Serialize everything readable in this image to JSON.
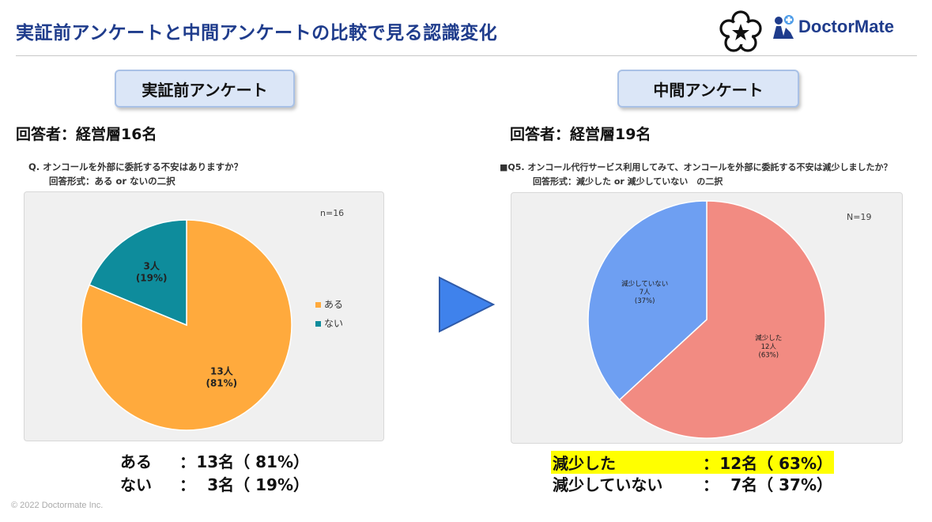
{
  "header": {
    "title": "実証前アンケートと中間アンケートの比較で見る認識変化",
    "logo_text": "DoctorMate"
  },
  "left": {
    "panel_label": "実証前アンケート",
    "respondents": "回答者：経営層16名",
    "question_line1": "Q.  オンコールを外部に委託する不安はありますか？",
    "question_line2": "回答形式：ある or ないの二択",
    "n_label": "n=16",
    "summary": [
      {
        "label": "ある",
        "sep": "：",
        "value": "13名（ 81%）"
      },
      {
        "label": "ない",
        "sep": "：",
        "value": "3名（ 19%）"
      }
    ]
  },
  "right": {
    "panel_label": "中間アンケート",
    "respondents": "回答者：経営層19名",
    "question_line1": "■Q5.  オンコール代行サービス利用してみて、オンコールを外部に委託する不安は減少しましたか？",
    "question_line2": "回答形式：減少した or 減少していない　の二択",
    "n_label": "N=19",
    "summary": [
      {
        "label": "減少した",
        "sep": "：",
        "value": "12名（ 63%）",
        "highlight": true
      },
      {
        "label": "減少していない",
        "sep": "：",
        "value": "7名（ 37%）",
        "highlight": false
      }
    ]
  },
  "footer": {
    "copyright": "© 2022 Doctormate Inc."
  },
  "colors": {
    "orange": "#ffaa3d",
    "teal": "#0e8c9c",
    "salmon": "#f28b82",
    "blue": "#6e9ff2",
    "highlight": "#ffff00",
    "arrow": "#3f82ec"
  },
  "chart_data": [
    {
      "type": "pie",
      "title": "",
      "slices": [
        {
          "label": "ある",
          "value": 13,
          "percent": 81,
          "text": "13人",
          "pct_text": "(81%)",
          "color": "#ffaa3d"
        },
        {
          "label": "ない",
          "value": 3,
          "percent": 19,
          "text": "3人",
          "pct_text": "(19%)",
          "color": "#0e8c9c"
        }
      ],
      "legend": [
        "ある",
        "ない"
      ],
      "legend_position": "right"
    },
    {
      "type": "pie",
      "title": "",
      "slices": [
        {
          "label": "減少した",
          "value": 12,
          "percent": 63,
          "text": "12人",
          "pct_text": "(63%)",
          "color": "#f28b82"
        },
        {
          "label": "減少していない",
          "value": 7,
          "percent": 37,
          "text": "7人",
          "pct_text": "(37%)",
          "color": "#6e9ff2"
        }
      ],
      "legend": [],
      "legend_position": "none"
    }
  ]
}
